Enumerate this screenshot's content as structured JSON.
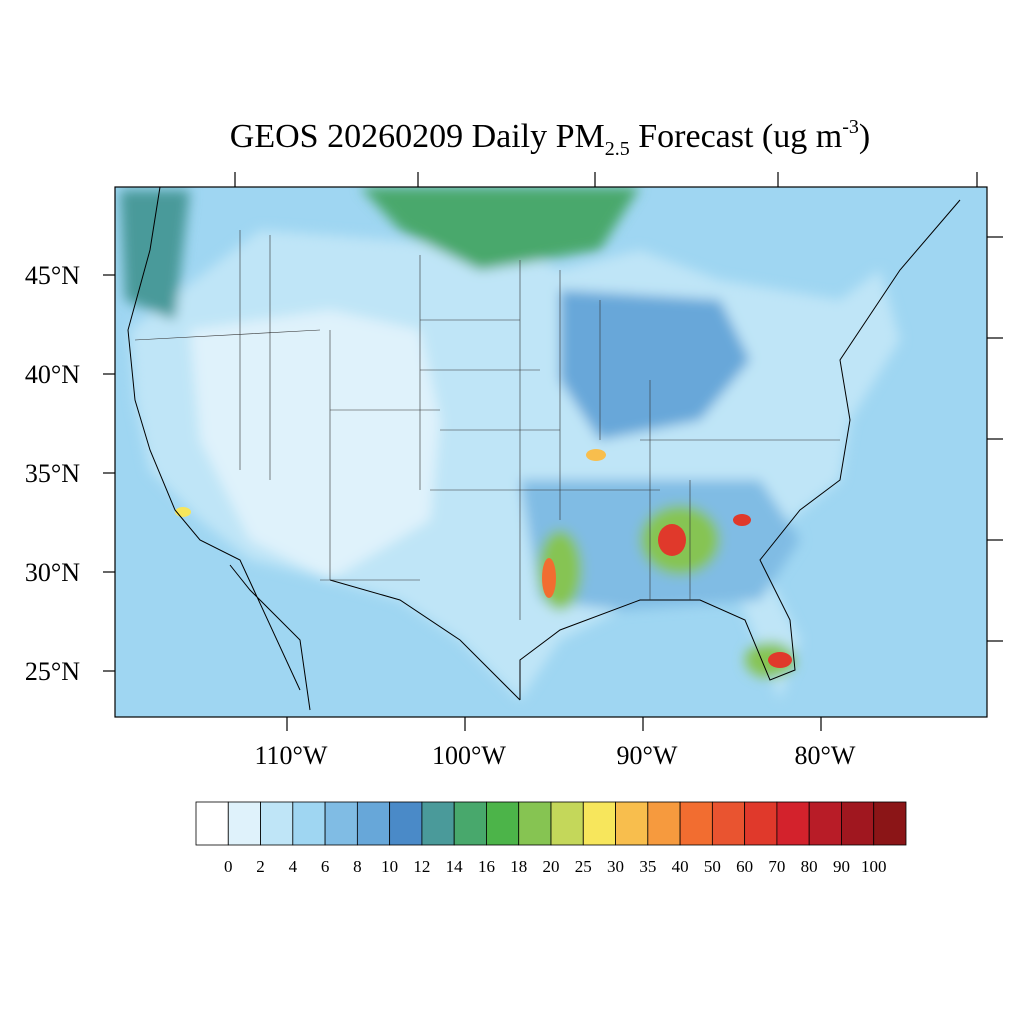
{
  "title": {
    "main": "GEOS 20260209 Daily PM",
    "subscript": "2.5",
    "middle": " Forecast (ug m",
    "superscript": "-3",
    "end": ")"
  },
  "map": {
    "latitude_labels": [
      "45°N",
      "40°N",
      "35°N",
      "30°N",
      "25°N"
    ],
    "longitude_labels": [
      "110°W",
      "100°W",
      "90°W",
      "80°W"
    ]
  },
  "colorbar": {
    "colors": [
      "#ffffff",
      "#dff2fb",
      "#bfe5f7",
      "#9fd6f2",
      "#80bce4",
      "#67a7d9",
      "#4a8ac8",
      "#4a9a9a",
      "#48a86c",
      "#4cb449",
      "#86c452",
      "#c4d75a",
      "#f7e65c",
      "#f8be4d",
      "#f69a3e",
      "#f26d30",
      "#e95430",
      "#e0392b",
      "#d3222c",
      "#b81c27",
      "#a0171f",
      "#8b1517"
    ],
    "levels": [
      0,
      2,
      4,
      6,
      8,
      10,
      12,
      14,
      16,
      18,
      20,
      25,
      30,
      35,
      40,
      50,
      60,
      70,
      80,
      90,
      100
    ]
  }
}
